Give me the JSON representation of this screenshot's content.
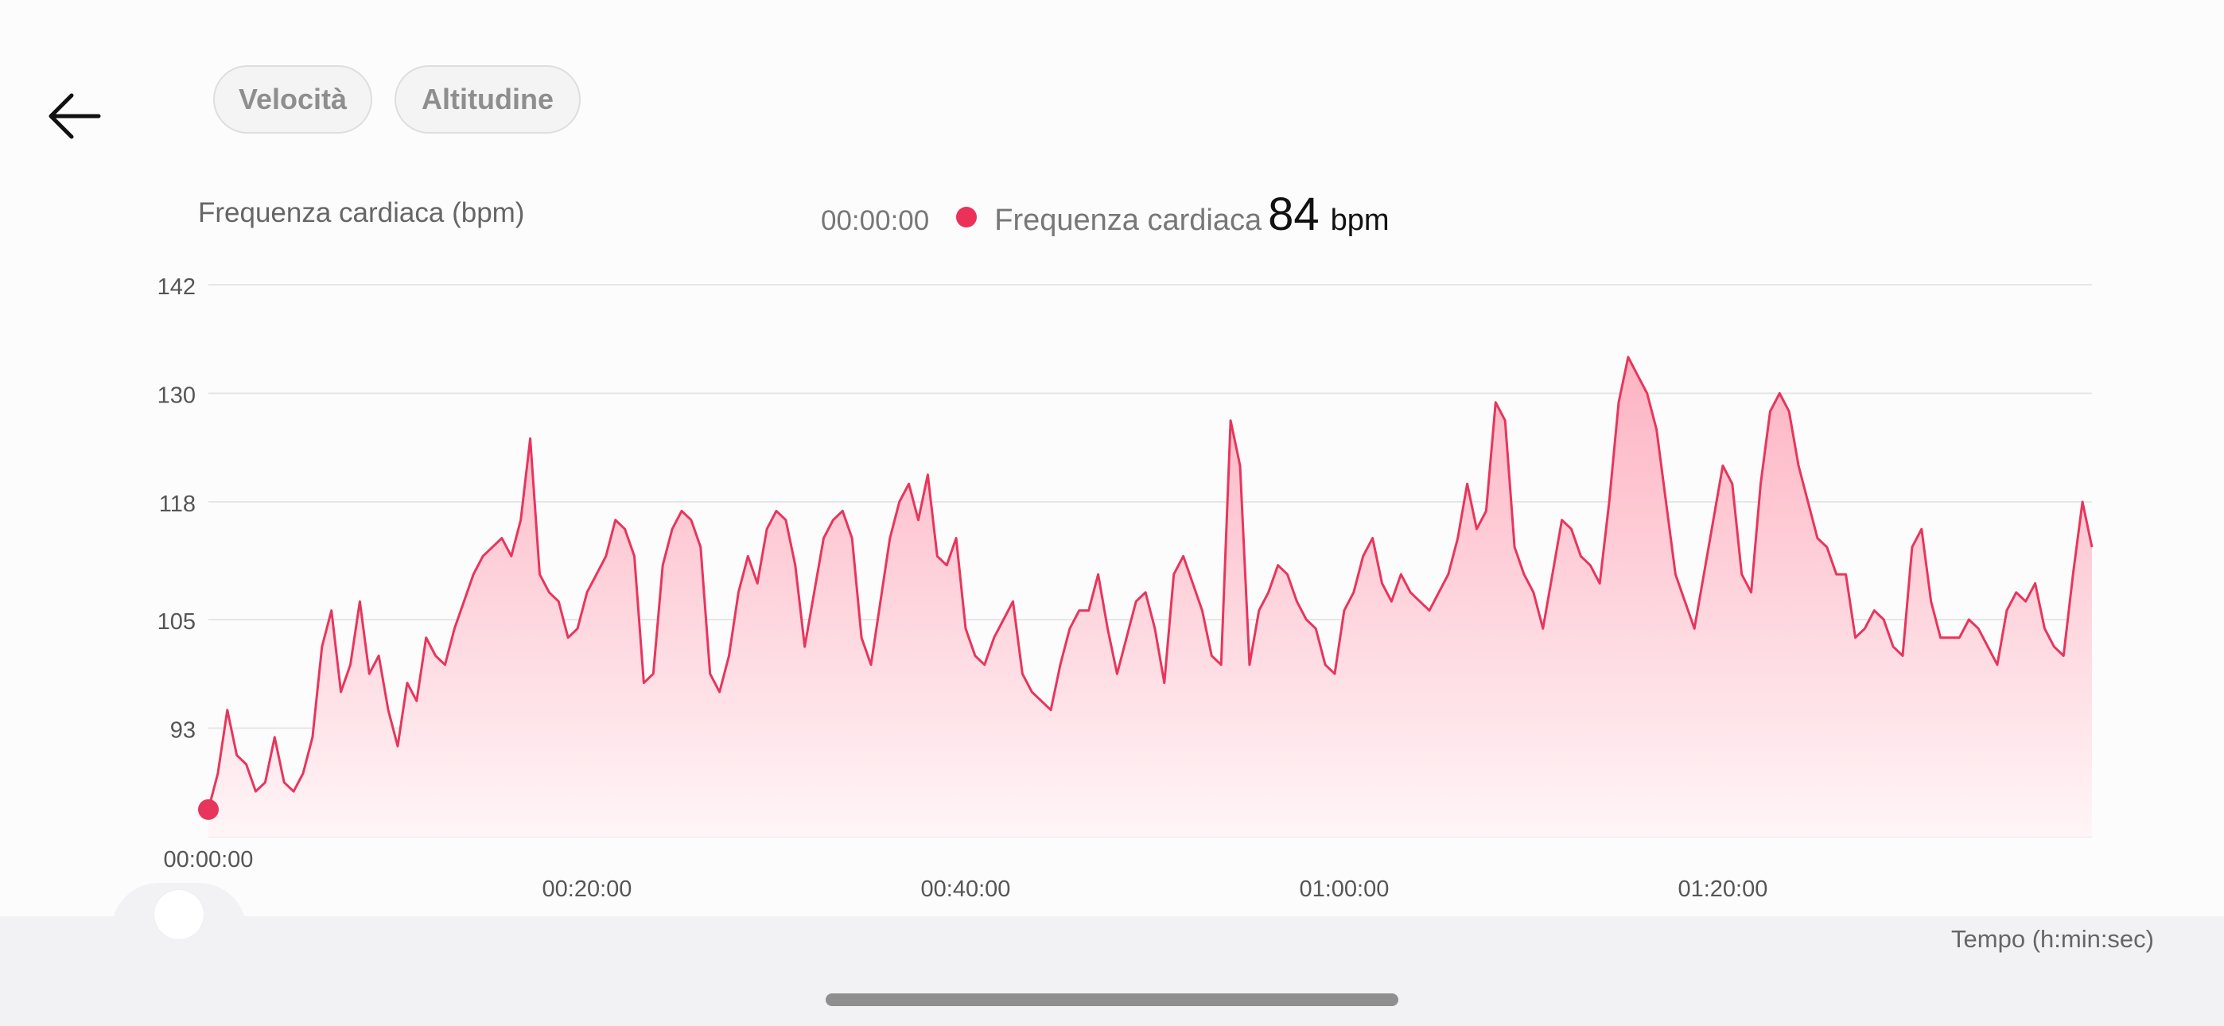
{
  "header": {
    "back_icon": "arrow-left-icon",
    "tabs": [
      {
        "label": "Velocità"
      },
      {
        "label": "Altitudine"
      }
    ]
  },
  "chart_header": {
    "title": "Frequenza cardiaca (bpm)",
    "cursor_time": "00:00:00",
    "series_label": "Frequenza cardiaca",
    "current_value": "84",
    "unit": "bpm"
  },
  "colors": {
    "line": "#e8355c",
    "fill_top": "#fdb3c2",
    "fill_bottom": "#fff5f7",
    "grid": "#e6e6e6"
  },
  "x_axis_title": "Tempo (h:min:sec)",
  "chart_data": {
    "type": "area",
    "title": "Frequenza cardiaca (bpm)",
    "xlabel": "Tempo (h:min:sec)",
    "ylabel": "Frequenza cardiaca (bpm)",
    "ylim": [
      81,
      142
    ],
    "xlim": [
      "00:00:00",
      "01:39:30"
    ],
    "y_ticks": [
      "142",
      "130",
      "118",
      "105",
      "93"
    ],
    "x_ticks": [
      {
        "t": 0,
        "label": "00:00:00"
      },
      {
        "t": 20,
        "label": "00:20:00"
      },
      {
        "t": 40,
        "label": "00:40:00"
      },
      {
        "t": 60,
        "label": "01:00:00"
      },
      {
        "t": 80,
        "label": "01:20:00"
      }
    ],
    "grid": true,
    "series": [
      {
        "name": "Frequenza cardiaca",
        "x_minutes": [
          0,
          0.5,
          1,
          1.5,
          2,
          2.5,
          3,
          3.5,
          4,
          4.5,
          5,
          5.5,
          6,
          6.5,
          7,
          7.5,
          8,
          8.5,
          9,
          9.5,
          10,
          10.5,
          11,
          11.5,
          12,
          12.5,
          13,
          13.5,
          14,
          14.5,
          15,
          15.5,
          16,
          16.5,
          17,
          17.5,
          18,
          18.5,
          19,
          19.5,
          20,
          20.5,
          21,
          21.5,
          22,
          22.5,
          23,
          23.5,
          24,
          24.5,
          25,
          25.5,
          26,
          26.5,
          27,
          27.5,
          28,
          28.5,
          29,
          29.5,
          30,
          30.5,
          31,
          31.5,
          32,
          32.5,
          33,
          33.5,
          34,
          34.5,
          35,
          35.5,
          36,
          36.5,
          37,
          37.5,
          38,
          38.5,
          39,
          39.5,
          40,
          40.5,
          41,
          41.5,
          42,
          42.5,
          43,
          43.5,
          44,
          44.5,
          45,
          45.5,
          46,
          46.5,
          47,
          47.5,
          48,
          48.5,
          49,
          49.5,
          50,
          50.5,
          51,
          51.5,
          52,
          52.5,
          53,
          53.5,
          54,
          54.5,
          55,
          55.5,
          56,
          56.5,
          57,
          57.5,
          58,
          58.5,
          59,
          59.5,
          60,
          60.5,
          61,
          61.5,
          62,
          62.5,
          63,
          63.5,
          64,
          64.5,
          65,
          65.5,
          66,
          66.5,
          67,
          67.5,
          68,
          68.5,
          69,
          69.5,
          70,
          70.5,
          71,
          71.5,
          72,
          72.5,
          73,
          73.5,
          74,
          74.5,
          75,
          75.5,
          76,
          76.5,
          77,
          77.5,
          78,
          78.5,
          79,
          79.5,
          80,
          80.5,
          81,
          81.5,
          82,
          82.5,
          83,
          83.5,
          84,
          84.5,
          85,
          85.5,
          86,
          86.5,
          87,
          87.5,
          88,
          88.5,
          89,
          89.5,
          90,
          90.5,
          91,
          91.5,
          92,
          92.5,
          93,
          93.5,
          94,
          94.5,
          95,
          95.5,
          96,
          96.5,
          97,
          97.5,
          98,
          98.5,
          99,
          99.5
        ],
        "values": [
          84,
          88,
          95,
          90,
          89,
          86,
          87,
          92,
          87,
          86,
          88,
          92,
          102,
          106,
          97,
          100,
          107,
          99,
          101,
          95,
          91,
          98,
          96,
          103,
          101,
          100,
          104,
          107,
          110,
          112,
          113,
          114,
          112,
          116,
          125,
          110,
          108,
          107,
          103,
          104,
          108,
          110,
          112,
          116,
          115,
          112,
          98,
          99,
          111,
          115,
          117,
          116,
          113,
          99,
          97,
          101,
          108,
          112,
          109,
          115,
          117,
          116,
          111,
          102,
          108,
          114,
          116,
          117,
          114,
          103,
          100,
          107,
          114,
          118,
          120,
          116,
          121,
          112,
          111,
          114,
          104,
          101,
          100,
          103,
          105,
          107,
          99,
          97,
          96,
          95,
          100,
          104,
          106,
          106,
          110,
          104,
          99,
          103,
          107,
          108,
          104,
          98,
          110,
          112,
          109,
          106,
          101,
          100,
          127,
          122,
          100,
          106,
          108,
          111,
          110,
          107,
          105,
          104,
          100,
          99,
          106,
          108,
          112,
          114,
          109,
          107,
          110,
          108,
          107,
          106,
          108,
          110,
          114,
          120,
          115,
          117,
          129,
          127,
          113,
          110,
          108,
          104,
          110,
          116,
          115,
          112,
          111,
          109,
          118,
          129,
          134,
          132,
          130,
          126,
          118,
          110,
          107,
          104,
          110,
          116,
          122,
          120,
          110,
          108,
          120,
          128,
          130,
          128,
          122,
          118,
          114,
          113,
          110,
          110,
          103,
          104,
          106,
          105,
          102,
          101,
          113,
          115,
          107,
          103,
          103,
          103,
          105,
          104,
          102,
          100,
          106,
          108,
          107,
          109,
          104,
          102,
          101,
          110,
          118,
          113
        ]
      }
    ]
  }
}
